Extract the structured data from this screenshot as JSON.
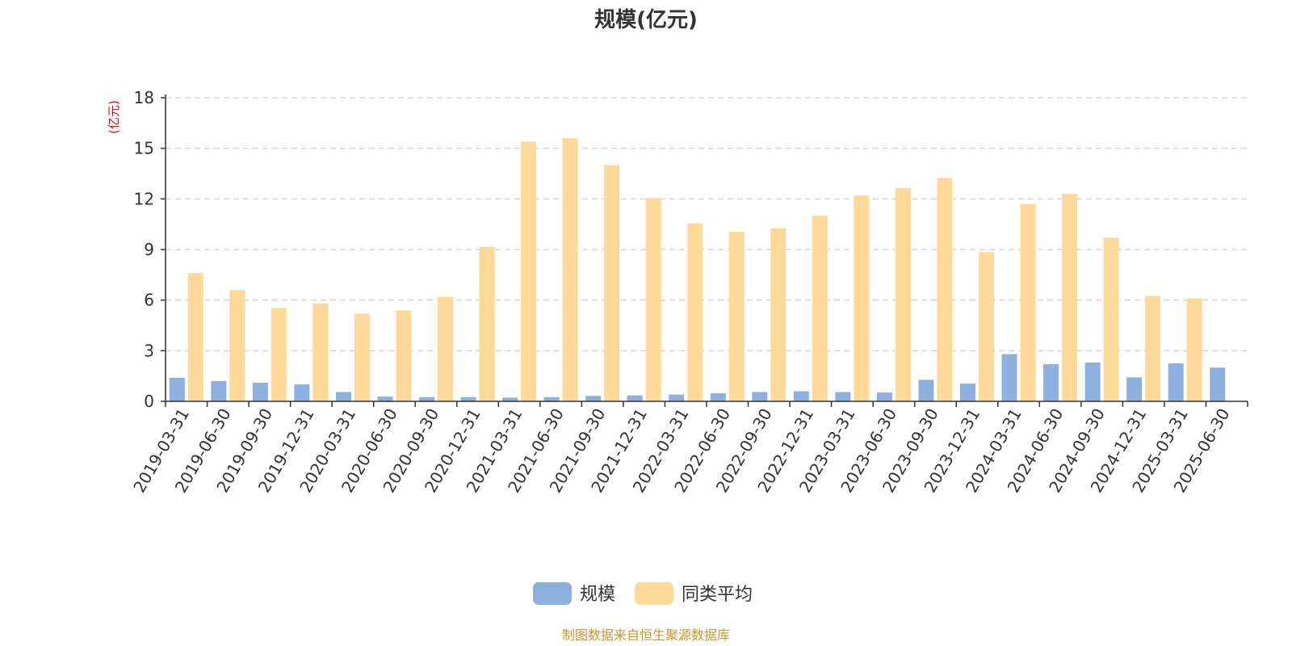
{
  "chart_data": {
    "type": "bar",
    "title": "规模(亿元)",
    "ylabel": "(亿元)",
    "xlabel": "",
    "ylim": [
      0,
      18
    ],
    "yticks": [
      0,
      3,
      6,
      9,
      12,
      15,
      18
    ],
    "grid": true,
    "legend_position": "bottom",
    "categories": [
      "2019-03-31",
      "2019-06-30",
      "2019-09-30",
      "2019-12-31",
      "2020-03-31",
      "2020-06-30",
      "2020-09-30",
      "2020-12-31",
      "2021-03-31",
      "2021-06-30",
      "2021-09-30",
      "2021-12-31",
      "2022-03-31",
      "2022-06-30",
      "2022-09-30",
      "2022-12-31",
      "2023-03-31",
      "2023-06-30",
      "2023-09-30",
      "2023-12-31",
      "2024-03-31",
      "2024-06-30",
      "2024-09-30",
      "2024-12-31",
      "2025-03-31",
      "2025-06-30"
    ],
    "series": [
      {
        "name": "规模",
        "color": "#8eb0de",
        "values": [
          1.4,
          1.2,
          1.1,
          1.0,
          0.55,
          0.28,
          0.25,
          0.25,
          0.22,
          0.25,
          0.32,
          0.35,
          0.4,
          0.48,
          0.55,
          0.6,
          0.55,
          0.52,
          1.28,
          1.05,
          2.8,
          2.2,
          2.3,
          1.42,
          2.25,
          2.0
        ]
      },
      {
        "name": "同类平均",
        "color": "#ffd99a",
        "values": [
          7.6,
          6.6,
          5.55,
          5.8,
          5.2,
          5.38,
          6.2,
          9.15,
          15.4,
          15.6,
          14.0,
          12.05,
          10.55,
          10.05,
          10.25,
          11.0,
          12.2,
          12.65,
          13.25,
          8.85,
          11.7,
          12.3,
          9.7,
          6.25,
          6.1,
          null
        ]
      }
    ]
  },
  "footer": {
    "source": "制图数据来自恒生聚源数据库"
  }
}
